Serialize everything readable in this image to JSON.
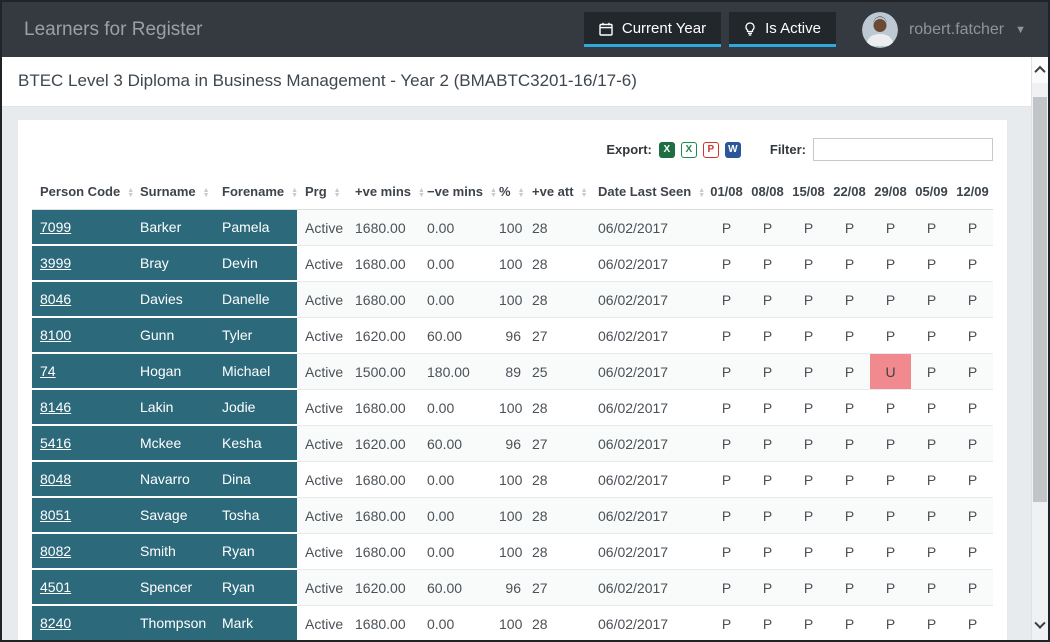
{
  "navbar": {
    "title": "Learners for Register",
    "buttons": [
      {
        "label": "Current Year",
        "icon": "calendar-icon"
      },
      {
        "label": "Is Active",
        "icon": "lightbulb-icon"
      }
    ],
    "user": {
      "name": "robert.fatcher"
    }
  },
  "page": {
    "course_title": "BTEC Level 3 Diploma in Business Management - Year 2 (BMABTC3201-16/17-6)"
  },
  "toolbar": {
    "export_label": "Export:",
    "export_icons": [
      {
        "name": "excel-xls-icon",
        "glyph": "X"
      },
      {
        "name": "excel-csv-icon",
        "glyph": "X"
      },
      {
        "name": "pdf-icon",
        "glyph": "P"
      },
      {
        "name": "word-icon",
        "glyph": "W"
      }
    ],
    "filter_label": "Filter:",
    "filter_value": ""
  },
  "table": {
    "columns": [
      {
        "label": "Person Code",
        "sortable": true,
        "key": "person"
      },
      {
        "label": "Surname",
        "sortable": true,
        "key": "surname"
      },
      {
        "label": "Forename",
        "sortable": true,
        "key": "forename"
      },
      {
        "label": "Prg",
        "sortable": true,
        "key": "prg"
      },
      {
        "label": "+ve mins",
        "sortable": true,
        "key": "pos"
      },
      {
        "label": "−ve mins",
        "sortable": true,
        "key": "neg"
      },
      {
        "label": "%",
        "sortable": true,
        "key": "pct"
      },
      {
        "label": "+ve att",
        "sortable": true,
        "key": "att"
      },
      {
        "label": "Date Last Seen",
        "sortable": true,
        "key": "dls"
      },
      {
        "label": "01/08",
        "sortable": false,
        "key": "date"
      },
      {
        "label": "08/08",
        "sortable": false,
        "key": "date"
      },
      {
        "label": "15/08",
        "sortable": false,
        "key": "date"
      },
      {
        "label": "22/08",
        "sortable": false,
        "key": "date"
      },
      {
        "label": "29/08",
        "sortable": false,
        "key": "date"
      },
      {
        "label": "05/09",
        "sortable": false,
        "key": "date"
      },
      {
        "label": "12/09",
        "sortable": false,
        "key": "date"
      }
    ],
    "rows": [
      {
        "person_code": "7099",
        "surname": "Barker",
        "forename": "Pamela",
        "prg": "Active",
        "pos_mins": "1680.00",
        "neg_mins": "0.00",
        "pct": "100",
        "pos_att": "28",
        "date_last_seen": "06/02/2017",
        "marks": [
          "P",
          "P",
          "P",
          "P",
          "P",
          "P",
          "P"
        ]
      },
      {
        "person_code": "3999",
        "surname": "Bray",
        "forename": "Devin",
        "prg": "Active",
        "pos_mins": "1680.00",
        "neg_mins": "0.00",
        "pct": "100",
        "pos_att": "28",
        "date_last_seen": "06/02/2017",
        "marks": [
          "P",
          "P",
          "P",
          "P",
          "P",
          "P",
          "P"
        ]
      },
      {
        "person_code": "8046",
        "surname": "Davies",
        "forename": "Danelle",
        "prg": "Active",
        "pos_mins": "1680.00",
        "neg_mins": "0.00",
        "pct": "100",
        "pos_att": "28",
        "date_last_seen": "06/02/2017",
        "marks": [
          "P",
          "P",
          "P",
          "P",
          "P",
          "P",
          "P"
        ]
      },
      {
        "person_code": "8100",
        "surname": "Gunn",
        "forename": "Tyler",
        "prg": "Active",
        "pos_mins": "1620.00",
        "neg_mins": "60.00",
        "pct": "96",
        "pos_att": "27",
        "date_last_seen": "06/02/2017",
        "marks": [
          "P",
          "P",
          "P",
          "P",
          "P",
          "P",
          "P"
        ]
      },
      {
        "person_code": "74",
        "surname": "Hogan",
        "forename": "Michael",
        "prg": "Active",
        "pos_mins": "1500.00",
        "neg_mins": "180.00",
        "pct": "89",
        "pos_att": "25",
        "date_last_seen": "06/02/2017",
        "marks": [
          "P",
          "P",
          "P",
          "P",
          "U",
          "P",
          "P"
        ]
      },
      {
        "person_code": "8146",
        "surname": "Lakin",
        "forename": "Jodie",
        "prg": "Active",
        "pos_mins": "1680.00",
        "neg_mins": "0.00",
        "pct": "100",
        "pos_att": "28",
        "date_last_seen": "06/02/2017",
        "marks": [
          "P",
          "P",
          "P",
          "P",
          "P",
          "P",
          "P"
        ]
      },
      {
        "person_code": "5416",
        "surname": "Mckee",
        "forename": "Kesha",
        "prg": "Active",
        "pos_mins": "1620.00",
        "neg_mins": "60.00",
        "pct": "96",
        "pos_att": "27",
        "date_last_seen": "06/02/2017",
        "marks": [
          "P",
          "P",
          "P",
          "P",
          "P",
          "P",
          "P"
        ]
      },
      {
        "person_code": "8048",
        "surname": "Navarro",
        "forename": "Dina",
        "prg": "Active",
        "pos_mins": "1680.00",
        "neg_mins": "0.00",
        "pct": "100",
        "pos_att": "28",
        "date_last_seen": "06/02/2017",
        "marks": [
          "P",
          "P",
          "P",
          "P",
          "P",
          "P",
          "P"
        ]
      },
      {
        "person_code": "8051",
        "surname": "Savage",
        "forename": "Tosha",
        "prg": "Active",
        "pos_mins": "1680.00",
        "neg_mins": "0.00",
        "pct": "100",
        "pos_att": "28",
        "date_last_seen": "06/02/2017",
        "marks": [
          "P",
          "P",
          "P",
          "P",
          "P",
          "P",
          "P"
        ]
      },
      {
        "person_code": "8082",
        "surname": "Smith",
        "forename": "Ryan",
        "prg": "Active",
        "pos_mins": "1680.00",
        "neg_mins": "0.00",
        "pct": "100",
        "pos_att": "28",
        "date_last_seen": "06/02/2017",
        "marks": [
          "P",
          "P",
          "P",
          "P",
          "P",
          "P",
          "P"
        ]
      },
      {
        "person_code": "4501",
        "surname": "Spencer",
        "forename": "Ryan",
        "prg": "Active",
        "pos_mins": "1620.00",
        "neg_mins": "60.00",
        "pct": "96",
        "pos_att": "27",
        "date_last_seen": "06/02/2017",
        "marks": [
          "P",
          "P",
          "P",
          "P",
          "P",
          "P",
          "P"
        ]
      },
      {
        "person_code": "8240",
        "surname": "Thompson",
        "forename": "Mark",
        "prg": "Active",
        "pos_mins": "1680.00",
        "neg_mins": "0.00",
        "pct": "100",
        "pos_att": "28",
        "date_last_seen": "06/02/2017",
        "marks": [
          "P",
          "P",
          "P",
          "P",
          "P",
          "P",
          "P"
        ]
      }
    ]
  },
  "colors": {
    "navbar_bg": "#343a40",
    "accent": "#2da9dc",
    "teal_cell": "#2c6a7b",
    "unauthorised_bg": "#f08a8e",
    "page_bg": "#e8ebee"
  }
}
